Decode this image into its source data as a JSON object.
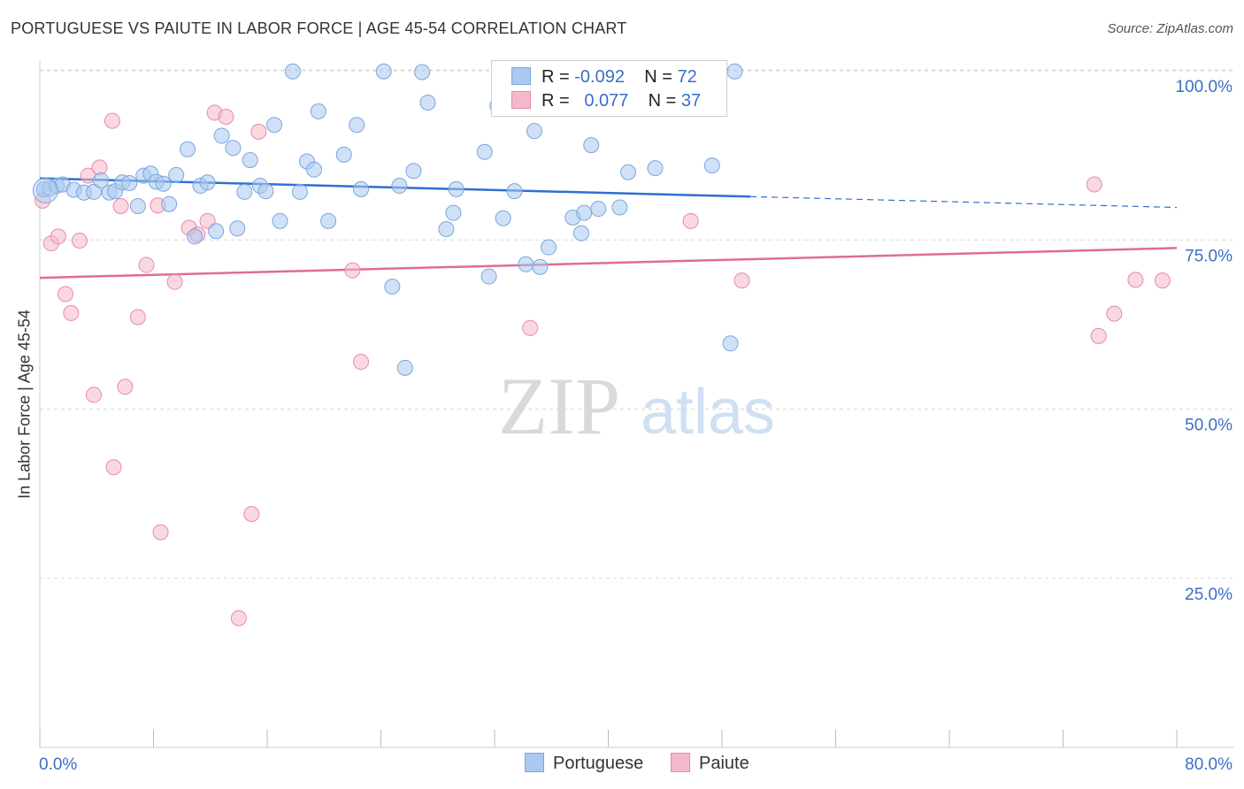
{
  "header": {
    "title": "PORTUGUESE VS PAIUTE IN LABOR FORCE | AGE 45-54 CORRELATION CHART",
    "source": "Source: ZipAtlas.com"
  },
  "legend": {
    "rows": [
      {
        "r_label": "R =",
        "r_value": "-0.092",
        "n_label": "N =",
        "n_value": "72"
      },
      {
        "r_label": "R =",
        "r_value": "0.077",
        "n_label": "N =",
        "n_value": "37"
      }
    ]
  },
  "bottom_legend": {
    "portuguese": "Portuguese",
    "paiute": "Paiute"
  },
  "colors": {
    "portuguese_fill": "#a9c9f0",
    "portuguese_stroke": "#7aa6dc",
    "portuguese_line": "#2f6fd0",
    "paiute_fill": "#f5b8cb",
    "paiute_stroke": "#e88aa8",
    "paiute_line": "#e06c96",
    "axis_text": "#3a6fc4",
    "grid": "#d8d8d8"
  },
  "chart_data": {
    "type": "scatter",
    "title": "PORTUGUESE VS PAIUTE IN LABOR FORCE | AGE 45-54 CORRELATION CHART",
    "ylabel": "In Labor Force | Age 45-54",
    "xlabel": "",
    "xlim": [
      0,
      80
    ],
    "ylim": [
      0,
      105
    ],
    "x_tick_labels": [
      "0.0%",
      "80.0%"
    ],
    "y_ticks": [
      25,
      50,
      75,
      100
    ],
    "y_tick_labels": [
      "25.0%",
      "50.0%",
      "75.0%",
      "100.0%"
    ],
    "grid": "horizontal dashed",
    "watermark": {
      "zip": "ZIP",
      "atlas": "atlas"
    },
    "series": [
      {
        "name": "Portuguese",
        "trend": {
          "x0": 0,
          "y0": 84.1,
          "x1": 50,
          "y1": 81.4,
          "x_dash_end": 80,
          "y_dash_end": 79.8
        },
        "points": [
          [
            0.3,
            82.5
          ],
          [
            0.7,
            82.6
          ],
          [
            1.2,
            83.0
          ],
          [
            1.6,
            83.2
          ],
          [
            2.4,
            82.4
          ],
          [
            3.1,
            82.0
          ],
          [
            3.8,
            82.1
          ],
          [
            4.3,
            83.8
          ],
          [
            4.9,
            82.0
          ],
          [
            5.3,
            82.2
          ],
          [
            5.8,
            83.5
          ],
          [
            6.3,
            83.4
          ],
          [
            6.9,
            80.0
          ],
          [
            7.3,
            84.5
          ],
          [
            7.8,
            84.8
          ],
          [
            8.2,
            83.6
          ],
          [
            8.7,
            83.3
          ],
          [
            9.1,
            80.3
          ],
          [
            9.6,
            84.6
          ],
          [
            10.4,
            88.4
          ],
          [
            10.9,
            75.5
          ],
          [
            11.3,
            83.0
          ],
          [
            11.8,
            83.5
          ],
          [
            12.4,
            76.3
          ],
          [
            12.8,
            90.4
          ],
          [
            13.6,
            88.6
          ],
          [
            13.9,
            76.7
          ],
          [
            14.4,
            82.1
          ],
          [
            14.8,
            86.8
          ],
          [
            15.5,
            83.0
          ],
          [
            15.9,
            82.2
          ],
          [
            16.5,
            92.0
          ],
          [
            16.9,
            77.8
          ],
          [
            17.8,
            99.9
          ],
          [
            18.3,
            82.1
          ],
          [
            18.8,
            86.6
          ],
          [
            19.3,
            85.4
          ],
          [
            19.6,
            94.0
          ],
          [
            20.3,
            77.8
          ],
          [
            21.4,
            87.6
          ],
          [
            22.3,
            92.0
          ],
          [
            22.6,
            82.5
          ],
          [
            24.2,
            99.9
          ],
          [
            24.8,
            68.1
          ],
          [
            25.3,
            83.0
          ],
          [
            25.7,
            56.1
          ],
          [
            26.3,
            85.2
          ],
          [
            26.9,
            99.8
          ],
          [
            27.3,
            95.3
          ],
          [
            28.6,
            76.6
          ],
          [
            29.1,
            79.0
          ],
          [
            29.3,
            82.5
          ],
          [
            31.3,
            88.0
          ],
          [
            31.6,
            69.6
          ],
          [
            32.2,
            94.8
          ],
          [
            32.6,
            78.2
          ],
          [
            33.4,
            82.2
          ],
          [
            34.2,
            71.4
          ],
          [
            34.8,
            91.1
          ],
          [
            35.2,
            71.0
          ],
          [
            35.8,
            73.9
          ],
          [
            37.5,
            78.3
          ],
          [
            38.1,
            76.0
          ],
          [
            38.3,
            79.0
          ],
          [
            38.8,
            89.0
          ],
          [
            39.3,
            79.6
          ],
          [
            41.4,
            85.0
          ],
          [
            43.3,
            85.6
          ],
          [
            47.3,
            86.0
          ],
          [
            48.9,
            99.9
          ],
          [
            48.6,
            59.7
          ],
          [
            40.8,
            79.8
          ]
        ]
      },
      {
        "name": "Paiute",
        "trend": {
          "x0": 0,
          "y0": 69.4,
          "x1": 80,
          "y1": 73.8
        },
        "points": [
          [
            0.2,
            80.8
          ],
          [
            0.8,
            74.5
          ],
          [
            1.3,
            75.5
          ],
          [
            1.8,
            67.0
          ],
          [
            2.2,
            64.2
          ],
          [
            2.8,
            74.9
          ],
          [
            3.4,
            84.5
          ],
          [
            3.8,
            52.1
          ],
          [
            4.2,
            85.7
          ],
          [
            5.1,
            92.6
          ],
          [
            5.2,
            41.4
          ],
          [
            5.7,
            80.0
          ],
          [
            6.0,
            53.3
          ],
          [
            6.9,
            63.6
          ],
          [
            7.5,
            71.3
          ],
          [
            8.3,
            80.1
          ],
          [
            8.5,
            31.8
          ],
          [
            9.5,
            68.8
          ],
          [
            10.5,
            76.8
          ],
          [
            11.1,
            75.8
          ],
          [
            11.8,
            77.8
          ],
          [
            12.3,
            93.8
          ],
          [
            13.1,
            93.2
          ],
          [
            14.0,
            19.1
          ],
          [
            14.9,
            34.5
          ],
          [
            15.4,
            91.0
          ],
          [
            22.0,
            70.5
          ],
          [
            22.6,
            57.0
          ],
          [
            34.5,
            62.0
          ],
          [
            45.8,
            77.8
          ],
          [
            45.9,
            99.9
          ],
          [
            49.4,
            69.0
          ],
          [
            74.2,
            83.2
          ],
          [
            74.5,
            60.8
          ],
          [
            75.6,
            64.1
          ],
          [
            77.1,
            69.1
          ],
          [
            79.0,
            69.0
          ]
        ]
      }
    ]
  }
}
